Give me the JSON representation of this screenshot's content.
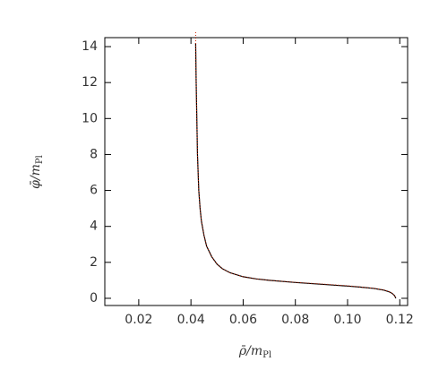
{
  "chart_data": {
    "type": "line",
    "x_label": "ρ̄/m",
    "x_label_sub": "Pl",
    "y_label": "φ̄/m",
    "y_label_sub": "Pl",
    "x": [
      0.0418,
      0.042,
      0.0425,
      0.043,
      0.0435,
      0.044,
      0.045,
      0.046,
      0.048,
      0.05,
      0.052,
      0.055,
      0.06,
      0.065,
      0.07,
      0.08,
      0.09,
      0.1,
      0.105,
      0.11,
      0.114,
      0.116,
      0.117,
      0.118,
      0.1185
    ],
    "series": [
      {
        "color": "#000000",
        "dash": false,
        "values": [
          14.2,
          12,
          8,
          6,
          5,
          4.3,
          3.5,
          2.9,
          2.3,
          1.9,
          1.65,
          1.42,
          1.2,
          1.08,
          1.0,
          0.88,
          0.78,
          0.68,
          0.62,
          0.55,
          0.45,
          0.36,
          0.28,
          0.15,
          0.0
        ]
      },
      {
        "color": "#cc2200",
        "dash": true,
        "values": [
          14.8,
          12,
          8,
          6,
          5,
          4.3,
          3.5,
          2.9,
          2.3,
          1.9,
          1.65,
          1.42,
          1.2,
          1.08,
          1.0,
          0.89,
          0.8,
          0.7,
          0.63,
          0.56,
          0.46,
          0.37,
          0.29,
          0.16,
          0.0
        ]
      }
    ],
    "xlim": [
      0.007,
      0.123
    ],
    "ylim": [
      -0.4,
      14.5
    ],
    "xticks": [
      0.02,
      0.04,
      0.06,
      0.08,
      {
        "value": 0.1,
        "label": "0.10"
      },
      0.12
    ],
    "yticks": [
      0,
      2,
      4,
      6,
      8,
      10,
      12,
      14
    ]
  }
}
